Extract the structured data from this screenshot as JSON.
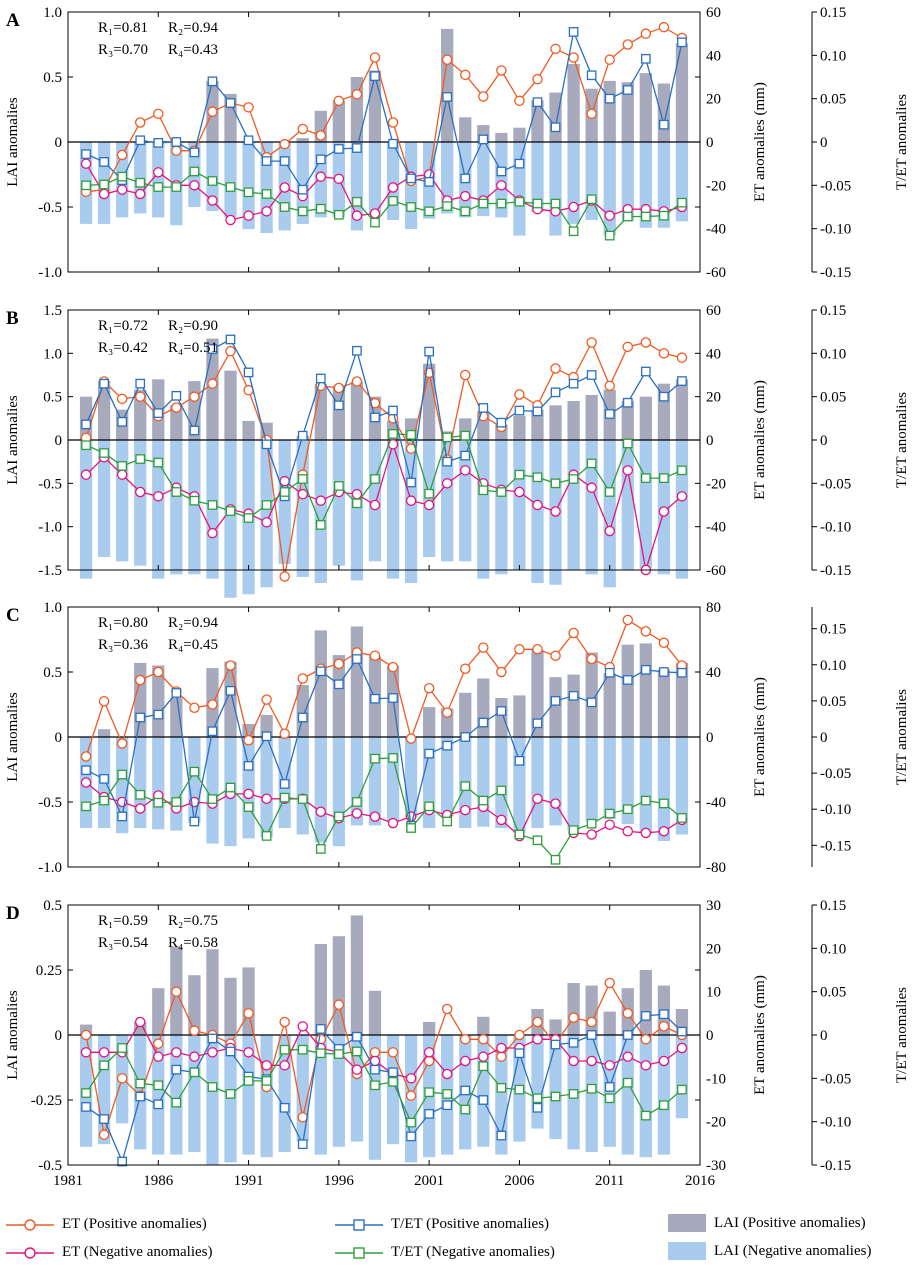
{
  "years_axis_label": "",
  "legend": {
    "et_pos": "ET (Positive anomalies)",
    "et_neg": "ET (Negative anomalies)",
    "tet_pos": "T/ET (Positive anomalies)",
    "tet_neg": "T/ET (Negative anomalies)",
    "lai_pos": "LAI (Positive anomalies)",
    "lai_neg": "LAI (Negative anomalies)"
  },
  "colors": {
    "et_pos": "#f05a22",
    "et_neg": "#e6137f",
    "tet_pos": "#2a6fc0",
    "tet_neg": "#2f9e3a",
    "lai_pos": "#a7a9bd",
    "lai_neg": "#a9cbee"
  },
  "chart_data": [
    {
      "panel": "A",
      "type": "bar",
      "xlabel": "",
      "ylabel": "LAI anomalies",
      "y2label": "ET anomalies (mm)",
      "y3label": "T/ET anomalies",
      "years": [
        1982,
        1983,
        1984,
        1985,
        1986,
        1987,
        1988,
        1989,
        1990,
        1991,
        1992,
        1993,
        1994,
        1995,
        1996,
        1997,
        1998,
        1999,
        2000,
        2001,
        2002,
        2003,
        2004,
        2005,
        2006,
        2007,
        2008,
        2009,
        2010,
        2011,
        2012,
        2013,
        2014,
        2015
      ],
      "ylim": [
        -1.0,
        1.0
      ],
      "yticks": [
        "-1.0",
        "-0.5",
        "0",
        "0.5",
        "1.0"
      ],
      "y2lim": [
        -60,
        60
      ],
      "y2ticks": [
        "-60",
        "-40",
        "-20",
        "0",
        "20",
        "40",
        "60"
      ],
      "y3lim": [
        -0.15,
        0.15
      ],
      "y3ticks": [
        "-0.15",
        "-0.10",
        "-0.05",
        "0",
        "0.05",
        "0.10",
        "0.15"
      ],
      "xticks": [
        "1981",
        "1986",
        "1991",
        "1996",
        "2001",
        "2006",
        "2011",
        "2016"
      ],
      "stats": [
        "R₁=0.81",
        "R₂=0.94",
        "R₃=0.70",
        "R₄=0.43"
      ],
      "lai_pos": [
        0,
        0,
        0,
        0,
        0,
        0,
        0,
        0.47,
        0.37,
        0,
        0,
        0,
        0.03,
        0.24,
        0.32,
        0.5,
        0.55,
        0,
        0,
        0,
        0.87,
        0.19,
        0.13,
        0.07,
        0.11,
        0.32,
        0.38,
        0.6,
        0.41,
        0.47,
        0.46,
        0.53,
        0.45,
        0.76
      ],
      "lai_neg": [
        -0.63,
        -0.63,
        -0.58,
        -0.55,
        -0.58,
        -0.64,
        -0.5,
        -0.53,
        -0.58,
        -0.67,
        -0.7,
        -0.68,
        -0.63,
        -0.58,
        -0.58,
        -0.68,
        -0.55,
        -0.6,
        -0.67,
        -0.59,
        -0.55,
        -0.58,
        -0.57,
        -0.58,
        -0.72,
        -0.54,
        -0.72,
        -0.63,
        -0.6,
        -0.72,
        -0.61,
        -0.66,
        -0.66,
        -0.61
      ],
      "et_pos": [
        -23,
        -22,
        -6,
        9,
        13,
        -4,
        -4,
        14,
        18,
        16,
        -7,
        -1,
        6,
        3,
        19,
        22,
        39,
        9,
        -18,
        -16,
        38,
        31,
        21,
        33,
        19,
        29,
        43,
        39,
        13,
        38,
        45,
        50,
        53,
        48
      ],
      "et_neg": [
        -10,
        -24,
        -22,
        -24,
        -14,
        -20,
        -20,
        -27,
        -36,
        -34,
        -32,
        -21,
        -25,
        -16,
        -17,
        -34,
        -33,
        -21,
        -16,
        -15,
        -27,
        -25,
        -27,
        -20,
        -27,
        -31,
        -32,
        -30,
        -27,
        -34,
        -31,
        -31,
        -32,
        -30
      ],
      "tet_pos": [
        -0.014,
        -0.023,
        -0.044,
        0.002,
        -0.001,
        0.0,
        -0.012,
        0.07,
        0.045,
        0.002,
        -0.022,
        -0.022,
        -0.055,
        -0.02,
        -0.008,
        -0.007,
        0.076,
        -0.002,
        -0.042,
        -0.046,
        0.052,
        -0.042,
        0.003,
        -0.034,
        -0.025,
        0.046,
        0.017,
        0.127,
        0.077,
        0.05,
        0.06,
        0.096,
        0.02,
        0.115
      ],
      "tet_neg": [
        -0.05,
        -0.049,
        -0.04,
        -0.047,
        -0.052,
        -0.052,
        -0.034,
        -0.045,
        -0.052,
        -0.058,
        -0.06,
        -0.075,
        -0.08,
        -0.077,
        -0.084,
        -0.069,
        -0.093,
        -0.068,
        -0.075,
        -0.08,
        -0.074,
        -0.08,
        -0.071,
        -0.071,
        -0.069,
        -0.071,
        -0.071,
        -0.103,
        -0.066,
        -0.108,
        -0.086,
        -0.086,
        -0.085,
        -0.07
      ]
    },
    {
      "panel": "B",
      "type": "bar",
      "xlabel": "",
      "ylabel": "LAI anomalies",
      "y2label": "ET anomalies (mm)",
      "y3label": "T/ET anomalies",
      "years": [
        1982,
        1983,
        1984,
        1985,
        1986,
        1987,
        1988,
        1989,
        1990,
        1991,
        1992,
        1993,
        1994,
        1995,
        1996,
        1997,
        1998,
        1999,
        2000,
        2001,
        2002,
        2003,
        2004,
        2005,
        2006,
        2007,
        2008,
        2009,
        2010,
        2011,
        2012,
        2013,
        2014,
        2015
      ],
      "ylim": [
        -1.5,
        1.5
      ],
      "yticks": [
        "-1.5",
        "-1.0",
        "-0.5",
        "0",
        "0.5",
        "1.0",
        "1.5"
      ],
      "y2lim": [
        -60,
        60
      ],
      "y2ticks": [
        "-60",
        "-40",
        "-20",
        "0",
        "20",
        "40",
        "60"
      ],
      "y3lim": [
        -0.15,
        0.15
      ],
      "y3ticks": [
        "-0.15",
        "-0.10",
        "-0.05",
        "0",
        "0.05",
        "0.10",
        "0.15"
      ],
      "xticks": [
        "1981",
        "1986",
        "1991",
        "1996",
        "2001",
        "2006",
        "2011",
        "2016"
      ],
      "stats": [
        "R₁=0.72",
        "R₂=0.90",
        "R₃=0.42",
        "R₄=0.51"
      ],
      "lai_pos": [
        0.5,
        0.68,
        0.35,
        0.58,
        0.7,
        0.4,
        0.68,
        1.17,
        0.8,
        0.22,
        0.2,
        0,
        0.05,
        0.65,
        0.63,
        0.67,
        0.5,
        0.22,
        0.25,
        0.88,
        0.1,
        0.25,
        0.33,
        0.18,
        0.28,
        0.35,
        0.4,
        0.45,
        0.52,
        0.58,
        0.45,
        0.5,
        0.65,
        0.7
      ],
      "lai_neg": [
        -1.6,
        -1.35,
        -1.4,
        -1.45,
        -1.6,
        -1.55,
        -1.55,
        -1.6,
        -1.82,
        -1.78,
        -1.7,
        -1.43,
        -1.58,
        -1.65,
        -1.45,
        -1.62,
        -1.4,
        -1.6,
        -1.65,
        -1.35,
        -1.4,
        -1.4,
        -1.6,
        -1.55,
        -1.5,
        -1.65,
        -1.67,
        -1.5,
        -1.55,
        -1.7,
        -1.5,
        -1.48,
        -1.55,
        -1.6
      ],
      "et_pos": [
        1,
        27,
        19,
        20,
        11,
        15,
        20,
        26,
        41,
        23,
        0,
        -63,
        -16,
        25,
        24,
        27,
        17,
        10,
        -4,
        31,
        -9,
        30,
        11,
        6,
        21,
        16,
        33,
        29,
        45,
        25,
        43,
        45,
        40,
        38
      ],
      "et_neg": [
        -16,
        -8,
        -16,
        -24,
        -26,
        -22,
        -26,
        -43,
        -32,
        -34,
        -38,
        -19,
        -25,
        -28,
        -24,
        -25,
        -30,
        -2,
        -28,
        -30,
        -20,
        -14,
        -20,
        -23,
        -24,
        -30,
        -33,
        -16,
        -22,
        -42,
        -14,
        -60,
        -33,
        -26
      ],
      "tet_pos": [
        0.018,
        0.065,
        0.021,
        0.065,
        0.031,
        0.051,
        0.011,
        0.105,
        0.116,
        0.078,
        -0.005,
        -0.065,
        0.005,
        0.071,
        0.04,
        0.103,
        0.026,
        0.034,
        -0.049,
        0.102,
        -0.025,
        -0.018,
        0.037,
        0.02,
        0.034,
        0.033,
        0.055,
        0.065,
        0.075,
        0.03,
        0.043,
        0.079,
        0.05,
        0.068
      ],
      "tet_neg": [
        -0.006,
        -0.015,
        -0.03,
        -0.022,
        -0.026,
        -0.06,
        -0.07,
        -0.075,
        -0.082,
        -0.09,
        -0.075,
        -0.06,
        -0.045,
        -0.098,
        -0.053,
        -0.073,
        -0.045,
        0.007,
        0.006,
        -0.062,
        0.003,
        0.005,
        -0.058,
        -0.06,
        -0.04,
        -0.043,
        -0.05,
        -0.045,
        -0.027,
        -0.06,
        -0.004,
        -0.044,
        -0.044,
        -0.035
      ]
    },
    {
      "panel": "C",
      "type": "bar",
      "xlabel": "",
      "ylabel": "LAI anomalies",
      "y2label": "ET anomalies (mm)",
      "y3label": "T/ET anomalies",
      "years": [
        1982,
        1983,
        1984,
        1985,
        1986,
        1987,
        1988,
        1989,
        1990,
        1991,
        1992,
        1993,
        1994,
        1995,
        1996,
        1997,
        1998,
        1999,
        2000,
        2001,
        2002,
        2003,
        2004,
        2005,
        2006,
        2007,
        2008,
        2009,
        2010,
        2011,
        2012,
        2013,
        2014,
        2015
      ],
      "ylim": [
        -1.0,
        1.0
      ],
      "yticks": [
        "-1.0",
        "-0.5",
        "0",
        "0.5",
        "1.0"
      ],
      "y2lim": [
        -80,
        80
      ],
      "y2ticks": [
        "-80",
        "-40",
        "0",
        "40",
        "80"
      ],
      "y3lim": [
        -0.18,
        0.18
      ],
      "y3ticks": [
        "-0.15",
        "-0.10",
        "-0.05",
        "0",
        "0.05",
        "0.10",
        "0.15"
      ],
      "xticks": [
        "1981",
        "1986",
        "1991",
        "1996",
        "2001",
        "2006",
        "2011",
        "2016"
      ],
      "stats": [
        "R₁=0.80",
        "R₂=0.94",
        "R₃=0.36",
        "R₄=0.45"
      ],
      "lai_pos": [
        0,
        0.06,
        0,
        0.57,
        0.55,
        0.3,
        0,
        0.53,
        0.58,
        0.1,
        0.17,
        0,
        0.4,
        0.82,
        0.63,
        0.85,
        0.62,
        0.55,
        0,
        0.23,
        0.22,
        0.34,
        0.45,
        0.3,
        0.32,
        0.67,
        0.46,
        0.48,
        0.65,
        0.49,
        0.71,
        0.72,
        0.52,
        0.57
      ],
      "lai_neg": [
        -0.7,
        -0.7,
        -0.74,
        -0.7,
        -0.71,
        -0.72,
        -0.66,
        -0.82,
        -0.84,
        -0.78,
        -0.77,
        -0.7,
        -0.75,
        -0.81,
        -0.84,
        -0.68,
        -0.68,
        -0.65,
        -0.62,
        -0.7,
        -0.61,
        -0.7,
        -0.69,
        -0.7,
        -0.74,
        -0.7,
        -0.68,
        -0.72,
        -0.65,
        -0.63,
        -0.67,
        -0.74,
        -0.8,
        -0.75
      ],
      "et_pos": [
        -12,
        22,
        -4,
        35,
        40,
        28,
        18,
        20,
        44,
        -2,
        23,
        2,
        36,
        42,
        45,
        52,
        50,
        43,
        -1,
        30,
        15,
        42,
        55,
        40,
        54,
        54,
        50,
        64,
        48,
        43,
        72,
        65,
        58,
        44
      ],
      "et_neg": [
        -28,
        -37,
        -40,
        -44,
        -36,
        -44,
        -40,
        -41,
        -35,
        -35,
        -38,
        -38,
        -38,
        -46,
        -50,
        -47,
        -49,
        -53,
        -49,
        -45,
        -48,
        -45,
        -43,
        -51,
        -61,
        -38,
        -41,
        -59,
        -60,
        -54,
        -58,
        -59,
        -58,
        -51
      ],
      "tet_pos": [
        -0.046,
        -0.058,
        -0.11,
        0.027,
        0.031,
        0.061,
        -0.117,
        0.008,
        0.064,
        -0.04,
        0.001,
        -0.065,
        0.027,
        0.091,
        0.073,
        0.108,
        0.053,
        0.054,
        -0.123,
        -0.023,
        -0.012,
        0.0,
        0.02,
        0.036,
        -0.033,
        0.019,
        0.05,
        0.057,
        0.048,
        0.089,
        0.079,
        0.093,
        0.09,
        0.089
      ],
      "tet_neg": [
        -0.096,
        -0.088,
        -0.052,
        -0.08,
        -0.091,
        -0.09,
        -0.048,
        -0.086,
        -0.07,
        -0.097,
        -0.137,
        -0.084,
        -0.086,
        -0.155,
        -0.11,
        -0.09,
        -0.03,
        -0.029,
        -0.126,
        -0.096,
        -0.117,
        -0.068,
        -0.088,
        -0.074,
        -0.135,
        -0.143,
        -0.17,
        -0.129,
        -0.12,
        -0.106,
        -0.1,
        -0.088,
        -0.092,
        -0.112
      ]
    },
    {
      "panel": "D",
      "type": "bar",
      "xlabel": "",
      "ylabel": "LAI anomalies",
      "y2label": "ET anomalies (mm)",
      "y3label": "T/ET anomalies",
      "years": [
        1982,
        1983,
        1984,
        1985,
        1986,
        1987,
        1988,
        1989,
        1990,
        1991,
        1992,
        1993,
        1994,
        1995,
        1996,
        1997,
        1998,
        1999,
        2000,
        2001,
        2002,
        2003,
        2004,
        2005,
        2006,
        2007,
        2008,
        2009,
        2010,
        2011,
        2012,
        2013,
        2014,
        2015
      ],
      "ylim": [
        -0.5,
        0.5
      ],
      "yticks": [
        "-0.5",
        "-0.25",
        "0",
        "0.25",
        "0.5"
      ],
      "y2lim": [
        -30,
        30
      ],
      "y2ticks": [
        "-30",
        "-20",
        "-10",
        "0",
        "10",
        "20",
        "30"
      ],
      "y3lim": [
        -0.15,
        0.15
      ],
      "y3ticks": [
        "-0.15",
        "-0.10",
        "-0.05",
        "0",
        "0.05",
        "0.10",
        "0.15"
      ],
      "xticks": [
        "1981",
        "1986",
        "1991",
        "1996",
        "2001",
        "2006",
        "2011",
        "2016"
      ],
      "stats": [
        "R₁=0.59",
        "R₂=0.75",
        "R₃=0.54",
        "R₄=0.58"
      ],
      "lai_pos": [
        0.04,
        0,
        0,
        0.05,
        0.18,
        0.34,
        0.23,
        0.33,
        0.22,
        0.26,
        0,
        0,
        0,
        0.35,
        0.38,
        0.46,
        0.17,
        0,
        0,
        0.05,
        0,
        0,
        0.07,
        0,
        0,
        0.1,
        0.06,
        0.2,
        0.19,
        0.09,
        0.18,
        0.25,
        0.19,
        0.1
      ],
      "lai_neg": [
        -0.43,
        -0.42,
        -0.34,
        -0.44,
        -0.46,
        -0.46,
        -0.45,
        -0.5,
        -0.49,
        -0.46,
        -0.47,
        -0.45,
        -0.41,
        -0.46,
        -0.43,
        -0.41,
        -0.48,
        -0.42,
        -0.49,
        -0.47,
        -0.46,
        -0.44,
        -0.43,
        -0.46,
        -0.41,
        -0.36,
        -0.4,
        -0.44,
        -0.45,
        -0.43,
        -0.46,
        -0.47,
        -0.46,
        -0.32
      ],
      "et_pos": [
        0,
        -23,
        -10,
        -14,
        -2,
        10,
        1,
        0,
        -2,
        5,
        -12,
        3,
        -19,
        -1,
        7,
        -9,
        -4,
        -4,
        -14,
        -6,
        6,
        -1,
        -1,
        -5,
        0,
        3,
        -2,
        4,
        3,
        12,
        5,
        -1,
        2,
        0
      ],
      "et_neg": [
        -4,
        -4,
        -4,
        3,
        -5,
        -4,
        -5,
        -4,
        -3,
        -4,
        -7,
        -7,
        2,
        -3,
        -4,
        -8,
        -6,
        -9,
        -10,
        -4,
        -9,
        -6,
        -5,
        -3,
        -3,
        -1,
        -1,
        -6,
        -6,
        -7,
        -5,
        -7,
        -6,
        -3
      ],
      "tet_pos": [
        -0.083,
        -0.097,
        -0.146,
        -0.071,
        -0.08,
        -0.04,
        -0.043,
        -0.004,
        -0.019,
        -0.048,
        -0.051,
        -0.084,
        -0.126,
        0.007,
        -0.016,
        -0.002,
        -0.04,
        -0.043,
        -0.117,
        -0.091,
        -0.081,
        -0.064,
        -0.075,
        -0.116,
        -0.021,
        -0.084,
        -0.011,
        -0.009,
        0.0,
        -0.06,
        0.0,
        0.022,
        0.024,
        0.004
      ],
      "tet_neg": [
        -0.067,
        -0.035,
        -0.015,
        -0.056,
        -0.058,
        -0.078,
        -0.043,
        -0.06,
        -0.068,
        -0.053,
        -0.053,
        -0.017,
        -0.017,
        -0.021,
        -0.022,
        -0.019,
        -0.058,
        -0.054,
        -0.101,
        -0.066,
        -0.068,
        -0.086,
        -0.036,
        -0.061,
        -0.063,
        -0.073,
        -0.071,
        -0.068,
        -0.062,
        -0.073,
        -0.055,
        -0.093,
        -0.081,
        -0.063
      ]
    }
  ]
}
